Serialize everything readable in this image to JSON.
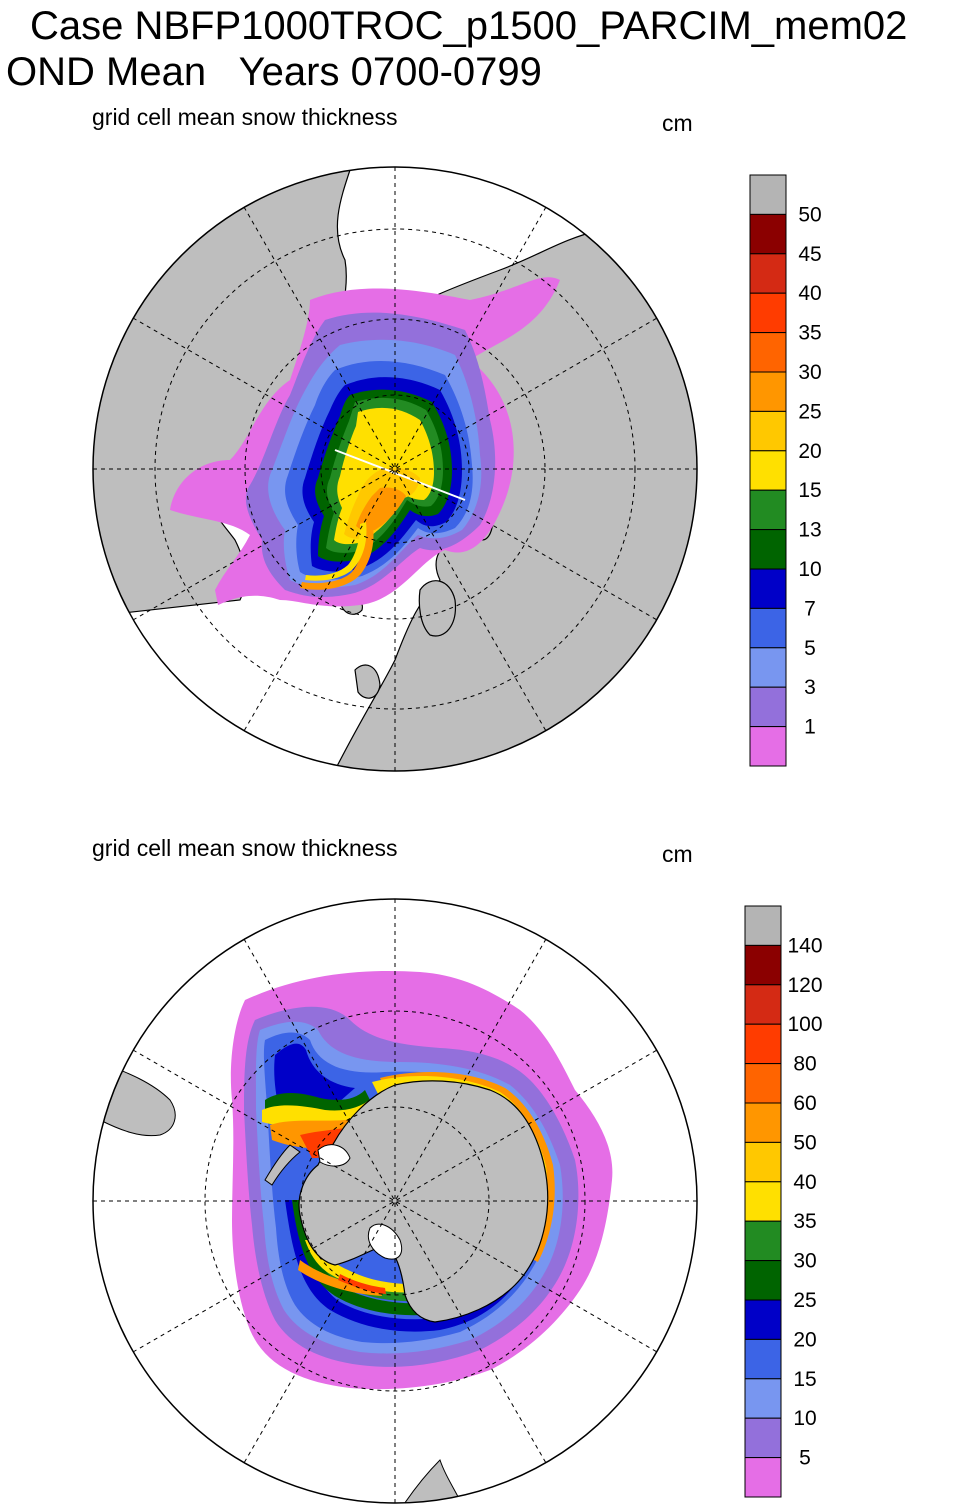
{
  "header": {
    "title": "Case NBFP1000TROC_p1500_PARCIM_mem02",
    "subtitle": "OND Mean   Years 0700-0799"
  },
  "panels": [
    {
      "hemisphere": "north",
      "variable_label": "grid cell mean snow thickness",
      "units": "cm",
      "colorbar": {
        "labels": [
          "50",
          "45",
          "40",
          "35",
          "30",
          "25",
          "20",
          "15",
          "13",
          "10",
          "7",
          "5",
          "3",
          "1"
        ],
        "colors": [
          "#b4b4b4",
          "#8b0000",
          "#d42a14",
          "#ff3c00",
          "#ff6400",
          "#ff9600",
          "#ffc800",
          "#ffe000",
          "#228b22",
          "#006400",
          "#0000c8",
          "#3c64e6",
          "#7896f0",
          "#9370db",
          "#e56ee6"
        ]
      }
    },
    {
      "hemisphere": "south",
      "variable_label": "grid cell mean snow thickness",
      "units": "cm",
      "colorbar": {
        "labels": [
          "140",
          "120",
          "100",
          "80",
          "60",
          "50",
          "40",
          "35",
          "30",
          "25",
          "20",
          "15",
          "10",
          "5"
        ],
        "colors": [
          "#b4b4b4",
          "#8b0000",
          "#d42a14",
          "#ff3c00",
          "#ff6400",
          "#ff9600",
          "#ffc800",
          "#ffe000",
          "#228b22",
          "#006400",
          "#0000c8",
          "#3c64e6",
          "#7896f0",
          "#9370db",
          "#e56ee6"
        ]
      }
    }
  ],
  "colors": {
    "land": "#bebebe",
    "ocean": "#ffffff"
  }
}
